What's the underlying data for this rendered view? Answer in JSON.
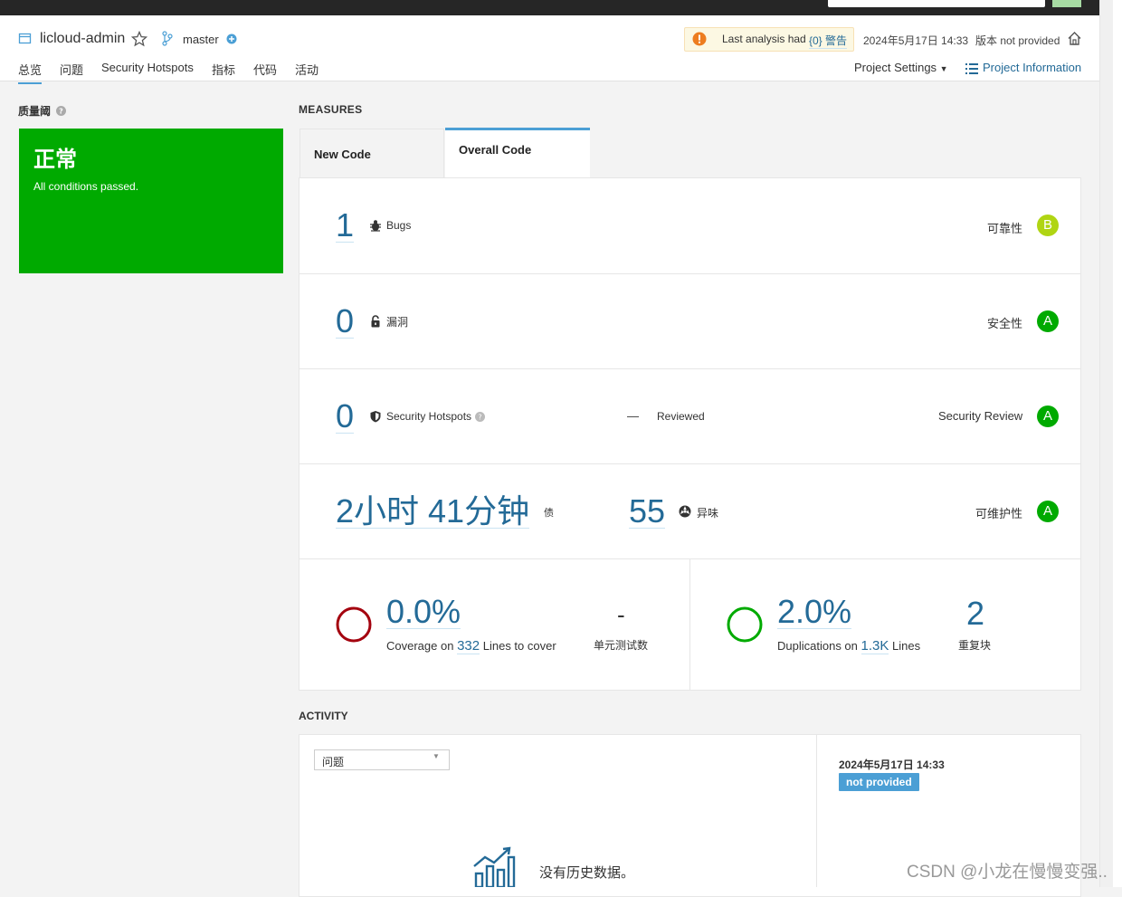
{
  "header": {
    "project_name": "licloud-admin",
    "branch": "master",
    "warning_prefix": "Last analysis had",
    "warning_link": "{0} 警告",
    "analysis_date": "2024年5月17日 14:33",
    "version": "版本 not provided",
    "tabs": [
      "总览",
      "问题",
      "Security Hotspots",
      "指标",
      "代码",
      "活动"
    ],
    "project_settings": "Project Settings",
    "project_information": "Project Information"
  },
  "quality_gate": {
    "title": "质量阈",
    "status": "正常",
    "description": "All conditions passed."
  },
  "measures": {
    "title": "MEASURES",
    "tab_new": "New Code",
    "tab_overall": "Overall Code",
    "bugs": {
      "value": "1",
      "label": "Bugs",
      "rating_label": "可靠性",
      "rating": "B"
    },
    "vulnerabilities": {
      "value": "0",
      "label": "漏洞",
      "rating_label": "安全性",
      "rating": "A"
    },
    "hotspots": {
      "value": "0",
      "label": "Security Hotspots",
      "reviewed_value": "—",
      "reviewed_label": "Reviewed",
      "rating_label": "Security Review",
      "rating": "A"
    },
    "maintainability": {
      "debt_value": "2小时 41分钟",
      "debt_label": "债",
      "smells_value": "55",
      "smells_label": "异味",
      "rating_label": "可维护性",
      "rating": "A"
    },
    "coverage": {
      "value": "0.0%",
      "label_prefix": "Coverage on",
      "lines": "332",
      "label_suffix": "Lines to cover",
      "tests_value": "-",
      "tests_label": "单元测试数"
    },
    "duplications": {
      "value": "2.0%",
      "label_prefix": "Duplications on",
      "lines": "1.3K",
      "label_suffix": "Lines",
      "blocks_value": "2",
      "blocks_label": "重复块"
    }
  },
  "activity": {
    "title": "ACTIVITY",
    "select_value": "问题",
    "no_history": "没有历史数据。",
    "event_date": "2024年5月17日 14:33",
    "event_badge": "not provided"
  },
  "watermark": "CSDN @小龙在慢慢变强.."
}
